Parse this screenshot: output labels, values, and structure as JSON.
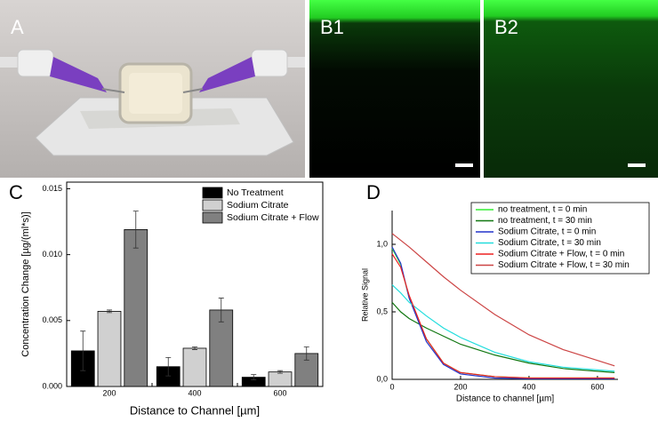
{
  "images": [
    {
      "label": "A"
    },
    {
      "label": "B1"
    },
    {
      "label": "B2"
    }
  ],
  "chart_data": [
    {
      "type": "bar",
      "panel": "C",
      "x_label": "Distance to Channel [µm]",
      "y_label": "Concentration Change [µg/(ml*s)]",
      "categories": [
        "200",
        "400",
        "600"
      ],
      "series": [
        {
          "name": "No Treatment",
          "color": "#000000",
          "values": [
            0.0027,
            0.0015,
            0.0007
          ],
          "errors": [
            0.0015,
            0.0007,
            0.0002
          ]
        },
        {
          "name": "Sodium Citrate",
          "color": "#d0d0d0",
          "values": [
            0.0057,
            0.0029,
            0.0011
          ],
          "errors": [
            0.0001,
            0.0001,
            0.0001
          ]
        },
        {
          "name": "Sodium Citrate + Flow",
          "color": "#808080",
          "values": [
            0.0119,
            0.0058,
            0.0025
          ],
          "errors": [
            0.0014,
            0.0009,
            0.0005
          ]
        }
      ],
      "ylim": [
        0,
        0.0155
      ],
      "yticks": [
        {
          "value": 0,
          "label": "0.000"
        },
        {
          "value": 0.005,
          "label": "0.005"
        },
        {
          "value": 0.01,
          "label": "0.010"
        },
        {
          "value": 0.015,
          "label": "0.015"
        }
      ]
    },
    {
      "type": "line",
      "panel": "D",
      "x_label": "Distance to channel [µm]",
      "y_label": "Relative Signal",
      "x": [
        0,
        25,
        50,
        100,
        150,
        200,
        300,
        400,
        500,
        650
      ],
      "series": [
        {
          "name": "no treatment, t = 0 min",
          "color": "#33ee33",
          "values": [
            0.97,
            0.85,
            0.6,
            0.3,
            0.12,
            0.05,
            0.02,
            0.01,
            0.01,
            0.01
          ]
        },
        {
          "name": "no treatment, t = 30 min",
          "color": "#117711",
          "values": [
            0.57,
            0.5,
            0.45,
            0.38,
            0.32,
            0.26,
            0.18,
            0.12,
            0.08,
            0.05
          ]
        },
        {
          "name": "Sodium Citrate, t = 0 min",
          "color": "#2233cc",
          "values": [
            0.98,
            0.86,
            0.6,
            0.28,
            0.11,
            0.04,
            0.01,
            0.005,
            0.005,
            0.005
          ]
        },
        {
          "name": "Sodium Citrate, t = 30 min",
          "color": "#22dddd",
          "values": [
            0.7,
            0.64,
            0.57,
            0.47,
            0.38,
            0.31,
            0.2,
            0.13,
            0.09,
            0.06
          ]
        },
        {
          "name": "Sodium Citrate + Flow, t = 0 min",
          "color": "#ee2222",
          "values": [
            0.93,
            0.83,
            0.62,
            0.3,
            0.12,
            0.05,
            0.02,
            0.01,
            0.01,
            0.01
          ]
        },
        {
          "name": "Sodium Citrate + Flow, t = 30 min",
          "color": "#cc4444",
          "values": [
            1.08,
            1.03,
            0.98,
            0.87,
            0.76,
            0.66,
            0.48,
            0.33,
            0.22,
            0.1
          ]
        }
      ],
      "xlim": [
        0,
        660
      ],
      "xticks": [
        0,
        200,
        400,
        600
      ],
      "ylim": [
        0,
        1.25
      ],
      "yticks": [
        {
          "value": 0,
          "label": "0,0"
        },
        {
          "value": 0.5,
          "label": "0,5"
        },
        {
          "value": 1,
          "label": "1,0"
        }
      ]
    }
  ]
}
